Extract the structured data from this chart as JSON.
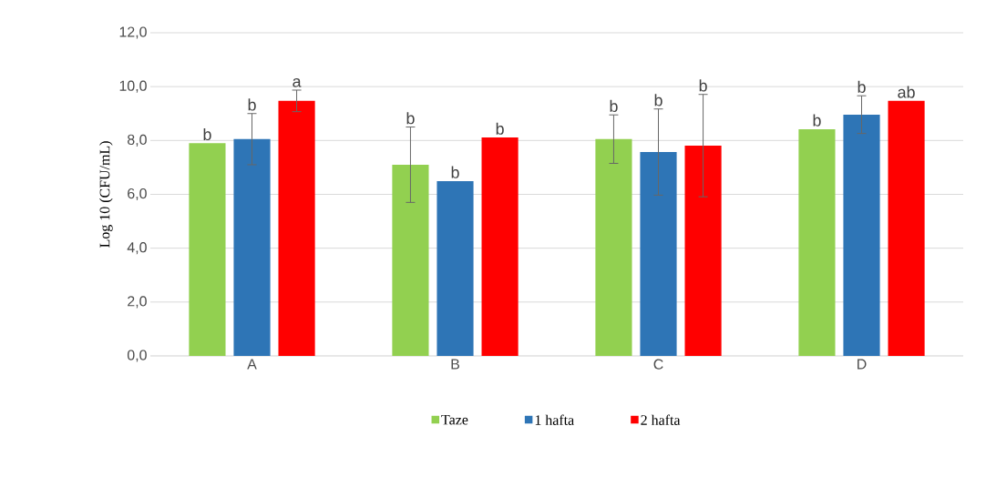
{
  "chart_data": {
    "type": "bar",
    "ylabel": "Log 10 (CFU/mL)",
    "categories": [
      "A",
      "B",
      "C",
      "D"
    ],
    "series": [
      {
        "name": "Taze",
        "color": "#92d050",
        "values": [
          7.9,
          7.1,
          8.05,
          8.42
        ],
        "errors": [
          null,
          1.4,
          0.9,
          null
        ]
      },
      {
        "name": "1 hafta",
        "color": "#2e75b6",
        "values": [
          8.05,
          6.49,
          7.57,
          8.96
        ],
        "errors": [
          0.95,
          null,
          1.6,
          0.7
        ]
      },
      {
        "name": "2 hafta",
        "color": "#ff0000",
        "values": [
          9.47,
          8.11,
          7.81,
          9.47
        ],
        "errors": [
          0.4,
          null,
          1.9,
          null
        ]
      }
    ],
    "annotations": [
      "b",
      "b",
      "a",
      "b",
      "b",
      "b",
      "b",
      "b",
      "b",
      "b",
      "b",
      "ab"
    ],
    "ylim": [
      0,
      12
    ],
    "yticks": [
      {
        "value": 0,
        "label": "0,0"
      },
      {
        "value": 2,
        "label": "2,0"
      },
      {
        "value": 4,
        "label": "4,0"
      },
      {
        "value": 6,
        "label": "6,0"
      },
      {
        "value": 8,
        "label": "8,0"
      },
      {
        "value": 10,
        "label": "10,0"
      },
      {
        "value": 12,
        "label": "12,0"
      }
    ],
    "grid": "y",
    "legend": "bottom"
  }
}
